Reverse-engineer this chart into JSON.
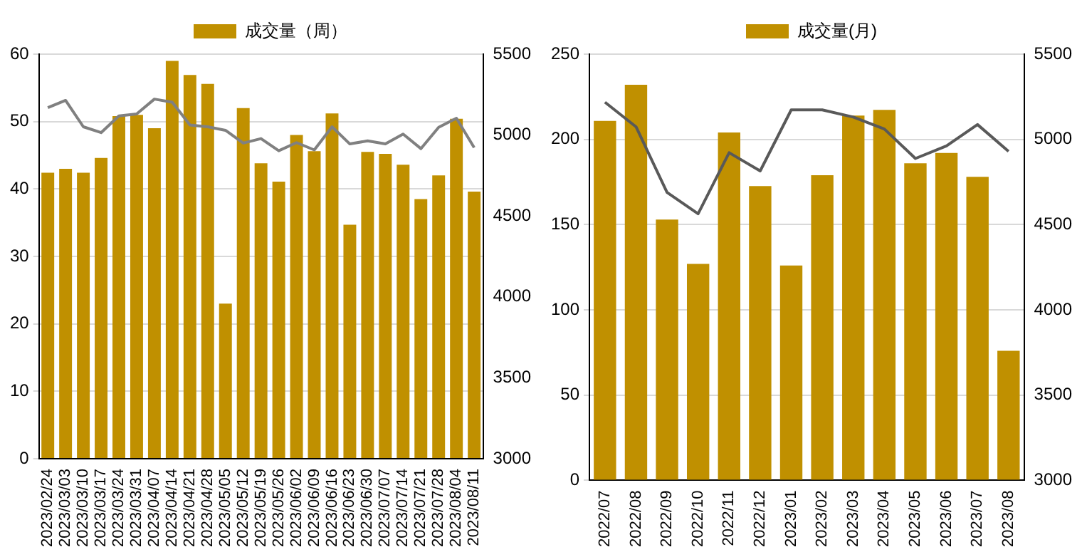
{
  "chart_data": [
    {
      "type": "bar",
      "categories": [
        "2023/02/24",
        "2023/03/03",
        "2023/03/10",
        "2023/03/17",
        "2023/03/24",
        "2023/03/31",
        "2023/04/07",
        "2023/04/14",
        "2023/04/21",
        "2023/04/28",
        "2023/05/05",
        "2023/05/12",
        "2023/05/19",
        "2023/05/26",
        "2023/06/02",
        "2023/06/09",
        "2023/06/16",
        "2023/06/23",
        "2023/06/30",
        "2023/07/07",
        "2023/07/14",
        "2023/07/21",
        "2023/07/28",
        "2023/08/04",
        "2023/08/11"
      ],
      "series": [
        {
          "name": "成交量（周）",
          "color": "#c09000",
          "values": [
            42.4,
            43,
            42.4,
            44.6,
            50.8,
            51,
            49,
            59,
            56.9,
            55.6,
            23,
            52,
            43.8,
            41.1,
            48,
            45.6,
            51.2,
            34.7,
            45.5,
            45.2,
            43.6,
            38.5,
            42,
            50.4,
            39.6
          ]
        },
        {
          "type": "line",
          "axis": "y2",
          "color": "#808080",
          "values": [
            5169,
            5214,
            5051,
            5015,
            5118,
            5130,
            5222,
            5203,
            5062,
            5051,
            5029,
            4950,
            4978,
            4903,
            4953,
            4908,
            5051,
            4945,
            4964,
            4945,
            5006,
            4916,
            5048,
            5104,
            4922
          ]
        }
      ],
      "ylim": [
        0,
        60
      ],
      "yticks": [
        0,
        10,
        20,
        30,
        40,
        50,
        60
      ],
      "y2lim": [
        3000,
        5500
      ],
      "y2ticks": [
        3000,
        3500,
        4000,
        4500,
        5000,
        5500
      ],
      "grid": "y",
      "legend": "top"
    },
    {
      "type": "bar",
      "categories": [
        "2022/07",
        "2022/08",
        "2022/09",
        "2022/10",
        "2022/11",
        "2022/12",
        "2023/01",
        "2023/02",
        "2023/03",
        "2023/04",
        "2023/05",
        "2023/06",
        "2023/07",
        "2023/08"
      ],
      "series": [
        {
          "name": "成交量(月)",
          "color": "#c09000",
          "values": [
            210.8,
            232,
            153,
            127,
            204,
            172.6,
            126,
            179,
            214,
            217.3,
            186,
            192,
            178,
            76
          ]
        },
        {
          "type": "line",
          "axis": "y2",
          "color": "#595959",
          "values": [
            5218,
            5074,
            4689,
            4564,
            4922,
            4815,
            5173,
            5173,
            5131,
            5061,
            4888,
            4962,
            5087,
            4930
          ]
        }
      ],
      "ylim": [
        0,
        250
      ],
      "yticks": [
        0,
        50,
        100,
        150,
        200,
        250
      ],
      "y2lim": [
        3000,
        5500
      ],
      "y2ticks": [
        3000,
        3500,
        4000,
        4500,
        5000,
        5500
      ],
      "grid": "y",
      "legend": "top"
    }
  ]
}
